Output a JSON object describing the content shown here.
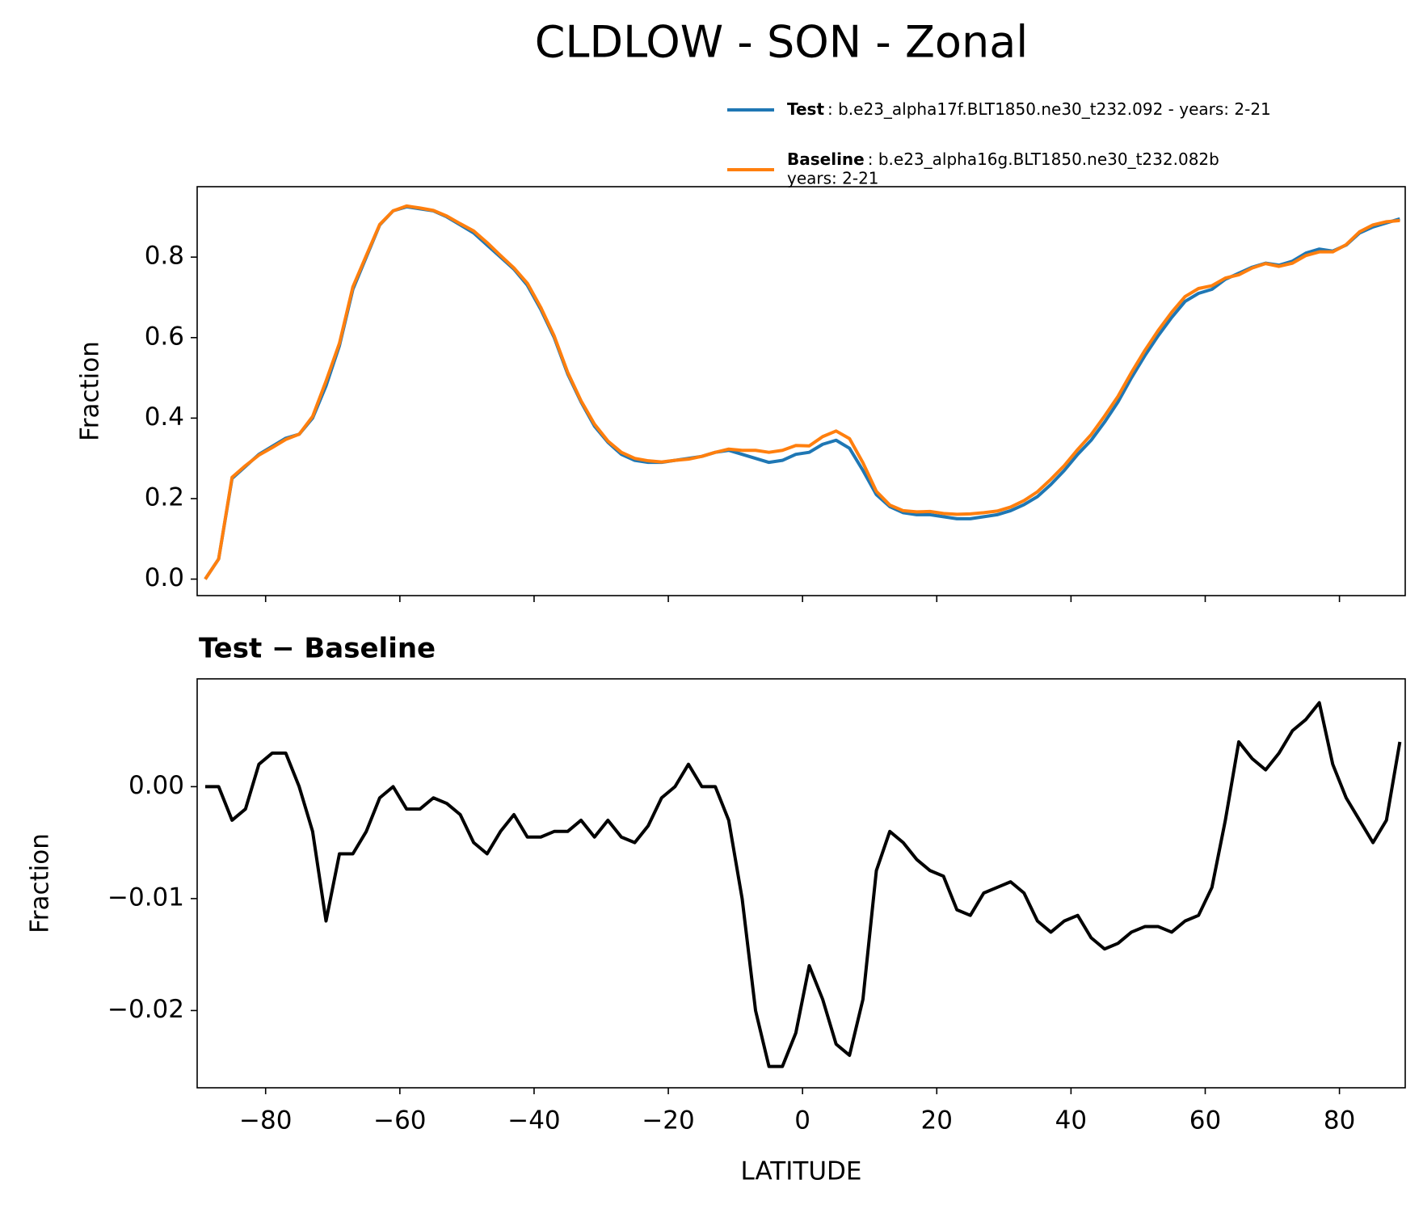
{
  "chart_data": [
    {
      "type": "line",
      "title": "CLDLOW - SON - Zonal",
      "ylabel": "Fraction",
      "x": [
        -89,
        -87,
        -85,
        -83,
        -81,
        -79,
        -77,
        -75,
        -73,
        -71,
        -69,
        -67,
        -65,
        -63,
        -61,
        -59,
        -57,
        -55,
        -53,
        -51,
        -49,
        -47,
        -45,
        -43,
        -41,
        -39,
        -37,
        -35,
        -33,
        -31,
        -29,
        -27,
        -25,
        -23,
        -21,
        -19,
        -17,
        -15,
        -13,
        -11,
        -9,
        -7,
        -5,
        -3,
        -1,
        1,
        3,
        5,
        7,
        9,
        11,
        13,
        15,
        17,
        19,
        21,
        23,
        25,
        27,
        29,
        31,
        33,
        35,
        37,
        39,
        41,
        43,
        45,
        47,
        49,
        51,
        53,
        55,
        57,
        59,
        61,
        63,
        65,
        67,
        69,
        71,
        73,
        75,
        77,
        79,
        81,
        83,
        85,
        87,
        89
      ],
      "series": [
        {
          "name": "Test",
          "description": [
            ": b.e23_alpha17f.BLT1850.ne30_t232.092 - years: 2-21"
          ],
          "color": "#1f77b4",
          "values": [
            0.0,
            0.05,
            0.25,
            0.28,
            0.31,
            0.33,
            0.35,
            0.36,
            0.4,
            0.48,
            0.58,
            0.72,
            0.8,
            0.88,
            0.915,
            0.925,
            0.92,
            0.915,
            0.9,
            0.88,
            0.86,
            0.83,
            0.8,
            0.77,
            0.73,
            0.67,
            0.6,
            0.51,
            0.44,
            0.38,
            0.34,
            0.31,
            0.295,
            0.29,
            0.29,
            0.295,
            0.3,
            0.305,
            0.315,
            0.32,
            0.31,
            0.3,
            0.29,
            0.295,
            0.31,
            0.315,
            0.335,
            0.345,
            0.325,
            0.27,
            0.21,
            0.18,
            0.165,
            0.16,
            0.16,
            0.155,
            0.15,
            0.15,
            0.155,
            0.16,
            0.17,
            0.185,
            0.205,
            0.235,
            0.27,
            0.31,
            0.345,
            0.39,
            0.44,
            0.5,
            0.555,
            0.605,
            0.65,
            0.69,
            0.71,
            0.72,
            0.745,
            0.76,
            0.775,
            0.785,
            0.78,
            0.79,
            0.81,
            0.82,
            0.815,
            0.83,
            0.86,
            0.875,
            0.885,
            0.895
          ]
        },
        {
          "name": "Baseline",
          "description": [
            ": b.e23_alpha16g.BLT1850.ne30_t232.082b",
            "years: 2-21"
          ],
          "color": "#ff7f0e",
          "values": [
            0.0,
            0.05,
            0.253,
            0.282,
            0.308,
            0.327,
            0.347,
            0.36,
            0.404,
            0.492,
            0.586,
            0.726,
            0.804,
            0.881,
            0.915,
            0.927,
            0.922,
            0.916,
            0.902,
            0.883,
            0.865,
            0.836,
            0.804,
            0.773,
            0.735,
            0.675,
            0.604,
            0.514,
            0.443,
            0.385,
            0.343,
            0.315,
            0.3,
            0.294,
            0.291,
            0.295,
            0.298,
            0.305,
            0.315,
            0.323,
            0.32,
            0.32,
            0.315,
            0.32,
            0.332,
            0.331,
            0.354,
            0.368,
            0.349,
            0.289,
            0.218,
            0.184,
            0.17,
            0.167,
            0.168,
            0.163,
            0.161,
            0.162,
            0.165,
            0.169,
            0.179,
            0.195,
            0.217,
            0.248,
            0.282,
            0.322,
            0.359,
            0.405,
            0.454,
            0.513,
            0.568,
            0.618,
            0.663,
            0.702,
            0.722,
            0.729,
            0.748,
            0.756,
            0.773,
            0.784,
            0.777,
            0.785,
            0.804,
            0.813,
            0.813,
            0.831,
            0.863,
            0.88,
            0.888,
            0.891
          ]
        }
      ],
      "xlim": [
        -90.2,
        89.8
      ],
      "xticks": [
        -80,
        -60,
        -40,
        -20,
        0,
        20,
        40,
        60,
        80
      ],
      "xtick_labels": false,
      "ylim": [
        -0.041,
        0.975
      ],
      "yticks": [
        {
          "value": 0,
          "label": "0.0"
        },
        0.2,
        0.4,
        0.6,
        0.8
      ],
      "legend": "upper right",
      "grid": false
    },
    {
      "type": "line",
      "title": "Test − Baseline",
      "xlabel": "LATITUDE",
      "ylabel": "Fraction",
      "x": [
        -89,
        -87,
        -85,
        -83,
        -81,
        -79,
        -77,
        -75,
        -73,
        -71,
        -69,
        -67,
        -65,
        -63,
        -61,
        -59,
        -57,
        -55,
        -53,
        -51,
        -49,
        -47,
        -45,
        -43,
        -41,
        -39,
        -37,
        -35,
        -33,
        -31,
        -29,
        -27,
        -25,
        -23,
        -21,
        -19,
        -17,
        -15,
        -13,
        -11,
        -9,
        -7,
        -5,
        -3,
        -1,
        1,
        3,
        5,
        7,
        9,
        11,
        13,
        15,
        17,
        19,
        21,
        23,
        25,
        27,
        29,
        31,
        33,
        35,
        37,
        39,
        41,
        43,
        45,
        47,
        49,
        51,
        53,
        55,
        57,
        59,
        61,
        63,
        65,
        67,
        69,
        71,
        73,
        75,
        77,
        79,
        81,
        83,
        85,
        87,
        89
      ],
      "series": [
        {
          "color": "#000000",
          "values": [
            0.0,
            0.0,
            -0.003,
            -0.002,
            0.002,
            0.003,
            0.003,
            0.0,
            -0.004,
            -0.012,
            -0.006,
            -0.006,
            -0.004,
            -0.001,
            0.0,
            -0.002,
            -0.002,
            -0.001,
            -0.0015,
            -0.0025,
            -0.005,
            -0.006,
            -0.004,
            -0.0025,
            -0.0045,
            -0.0045,
            -0.004,
            -0.004,
            -0.003,
            -0.0045,
            -0.003,
            -0.0045,
            -0.005,
            -0.0035,
            -0.001,
            0.0,
            0.002,
            0.0,
            0.0,
            -0.003,
            -0.01,
            -0.02,
            -0.025,
            -0.025,
            -0.022,
            -0.016,
            -0.019,
            -0.023,
            -0.024,
            -0.019,
            -0.0075,
            -0.004,
            -0.005,
            -0.0065,
            -0.0075,
            -0.008,
            -0.011,
            -0.0115,
            -0.0095,
            -0.009,
            -0.0085,
            -0.0095,
            -0.012,
            -0.013,
            -0.012,
            -0.0115,
            -0.0135,
            -0.0145,
            -0.014,
            -0.013,
            -0.0125,
            -0.0125,
            -0.013,
            -0.012,
            -0.0115,
            -0.009,
            -0.003,
            0.004,
            0.0025,
            0.0015,
            0.003,
            0.005,
            0.006,
            0.0075,
            0.002,
            -0.001,
            -0.003,
            -0.005,
            -0.003,
            0.004
          ]
        }
      ],
      "xlim": [
        -90.2,
        89.8
      ],
      "xticks": [
        {
          "value": -80,
          "label": "−80"
        },
        {
          "value": -60,
          "label": "−60"
        },
        {
          "value": -40,
          "label": "−40"
        },
        {
          "value": -20,
          "label": "−20"
        },
        0,
        20,
        40,
        60,
        80
      ],
      "xtick_labels": true,
      "ylim": [
        -0.0269,
        0.00963
      ],
      "yticks": [
        {
          "value": -0.02,
          "label": "−0.02"
        },
        {
          "value": -0.01,
          "label": "−0.01"
        },
        {
          "value": 0,
          "label": "0.00"
        }
      ],
      "grid": false
    }
  ]
}
